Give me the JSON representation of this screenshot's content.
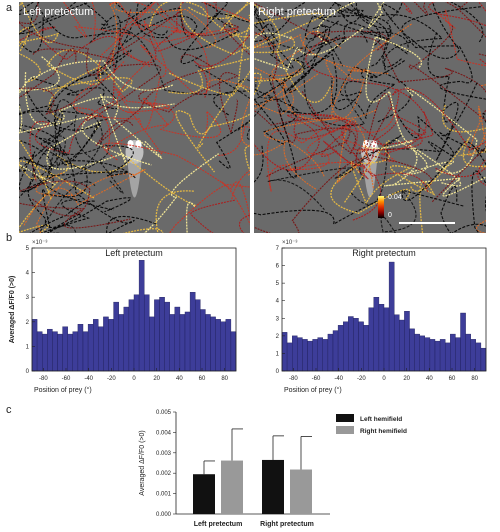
{
  "panels": {
    "a": "a",
    "b": "b",
    "c": "c"
  },
  "images": [
    {
      "title": "Left pretectum"
    },
    {
      "title": "Right pretectum"
    }
  ],
  "colorbar": {
    "max": "0.04",
    "min": "0",
    "colors": [
      "#000000",
      "#8b0000",
      "#e03000",
      "#ff9000",
      "#ffff80"
    ]
  },
  "chart_data": [
    {
      "type": "bar",
      "title": "Left pretectum",
      "ylabel": "Averaged ΔF/F0 (>0)",
      "xlabel": "Position of prey (°)",
      "y_scale_label": "×10⁻³",
      "ylim": [
        0,
        5
      ],
      "xlim": [
        -90,
        90
      ],
      "xticks": [
        -80,
        -60,
        -40,
        -20,
        0,
        20,
        40,
        60,
        80
      ],
      "yticks": [
        0,
        1,
        2,
        3,
        4,
        5
      ],
      "bin_width": 4.5,
      "bin_start": -90,
      "values": [
        2.1,
        1.6,
        1.5,
        1.7,
        1.6,
        1.5,
        1.8,
        1.5,
        1.6,
        1.9,
        1.6,
        1.9,
        2.1,
        1.8,
        2.2,
        2.1,
        2.8,
        2.3,
        2.6,
        2.9,
        3.1,
        4.5,
        3.1,
        2.2,
        2.9,
        3.0,
        2.8,
        2.3,
        2.6,
        2.3,
        2.4,
        3.2,
        2.9,
        2.5,
        2.3,
        2.2,
        2.1,
        2.0,
        2.1,
        1.6
      ],
      "bar_color": "#3d3d99"
    },
    {
      "type": "bar",
      "title": "Right pretectum",
      "ylabel": "",
      "xlabel": "Position of prey (°)",
      "y_scale_label": "×10⁻³",
      "ylim": [
        0,
        7
      ],
      "xlim": [
        -90,
        90
      ],
      "xticks": [
        -80,
        -60,
        -40,
        -20,
        0,
        20,
        40,
        60,
        80
      ],
      "yticks": [
        0,
        1,
        2,
        3,
        4,
        5,
        6,
        7
      ],
      "bin_width": 4.5,
      "bin_start": -90,
      "values": [
        2.2,
        1.6,
        2.0,
        1.9,
        1.8,
        1.7,
        1.8,
        1.9,
        1.8,
        2.1,
        2.3,
        2.6,
        2.8,
        3.1,
        3.0,
        2.8,
        2.6,
        3.6,
        4.2,
        3.8,
        3.6,
        6.2,
        3.2,
        2.9,
        3.4,
        2.4,
        2.1,
        2.0,
        1.9,
        1.8,
        1.7,
        1.8,
        1.6,
        2.1,
        1.9,
        3.3,
        2.1,
        1.8,
        1.6,
        1.3
      ],
      "bar_color": "#3d3d99"
    },
    {
      "type": "bar",
      "title": "",
      "ylabel": "Averaged ΔF/F0 (>0)",
      "xlabel": "",
      "ylim": [
        0,
        0.005
      ],
      "yticks": [
        0.0,
        0.001,
        0.002,
        0.003,
        0.004,
        0.005
      ],
      "ytick_labels": [
        "0.000",
        "0.001",
        "0.002",
        "0.003",
        "0.004",
        "0.005"
      ],
      "categories": [
        "Left pretectum",
        "Right pretectum"
      ],
      "series": [
        {
          "name": "Left hemifield",
          "values": [
            0.00195,
            0.00265
          ],
          "errors": [
            0.00065,
            0.00118
          ],
          "color": "#111111"
        },
        {
          "name": "Right hemifield",
          "values": [
            0.00262,
            0.00218
          ],
          "errors": [
            0.00155,
            0.00162
          ],
          "color": "#999999"
        }
      ]
    }
  ]
}
